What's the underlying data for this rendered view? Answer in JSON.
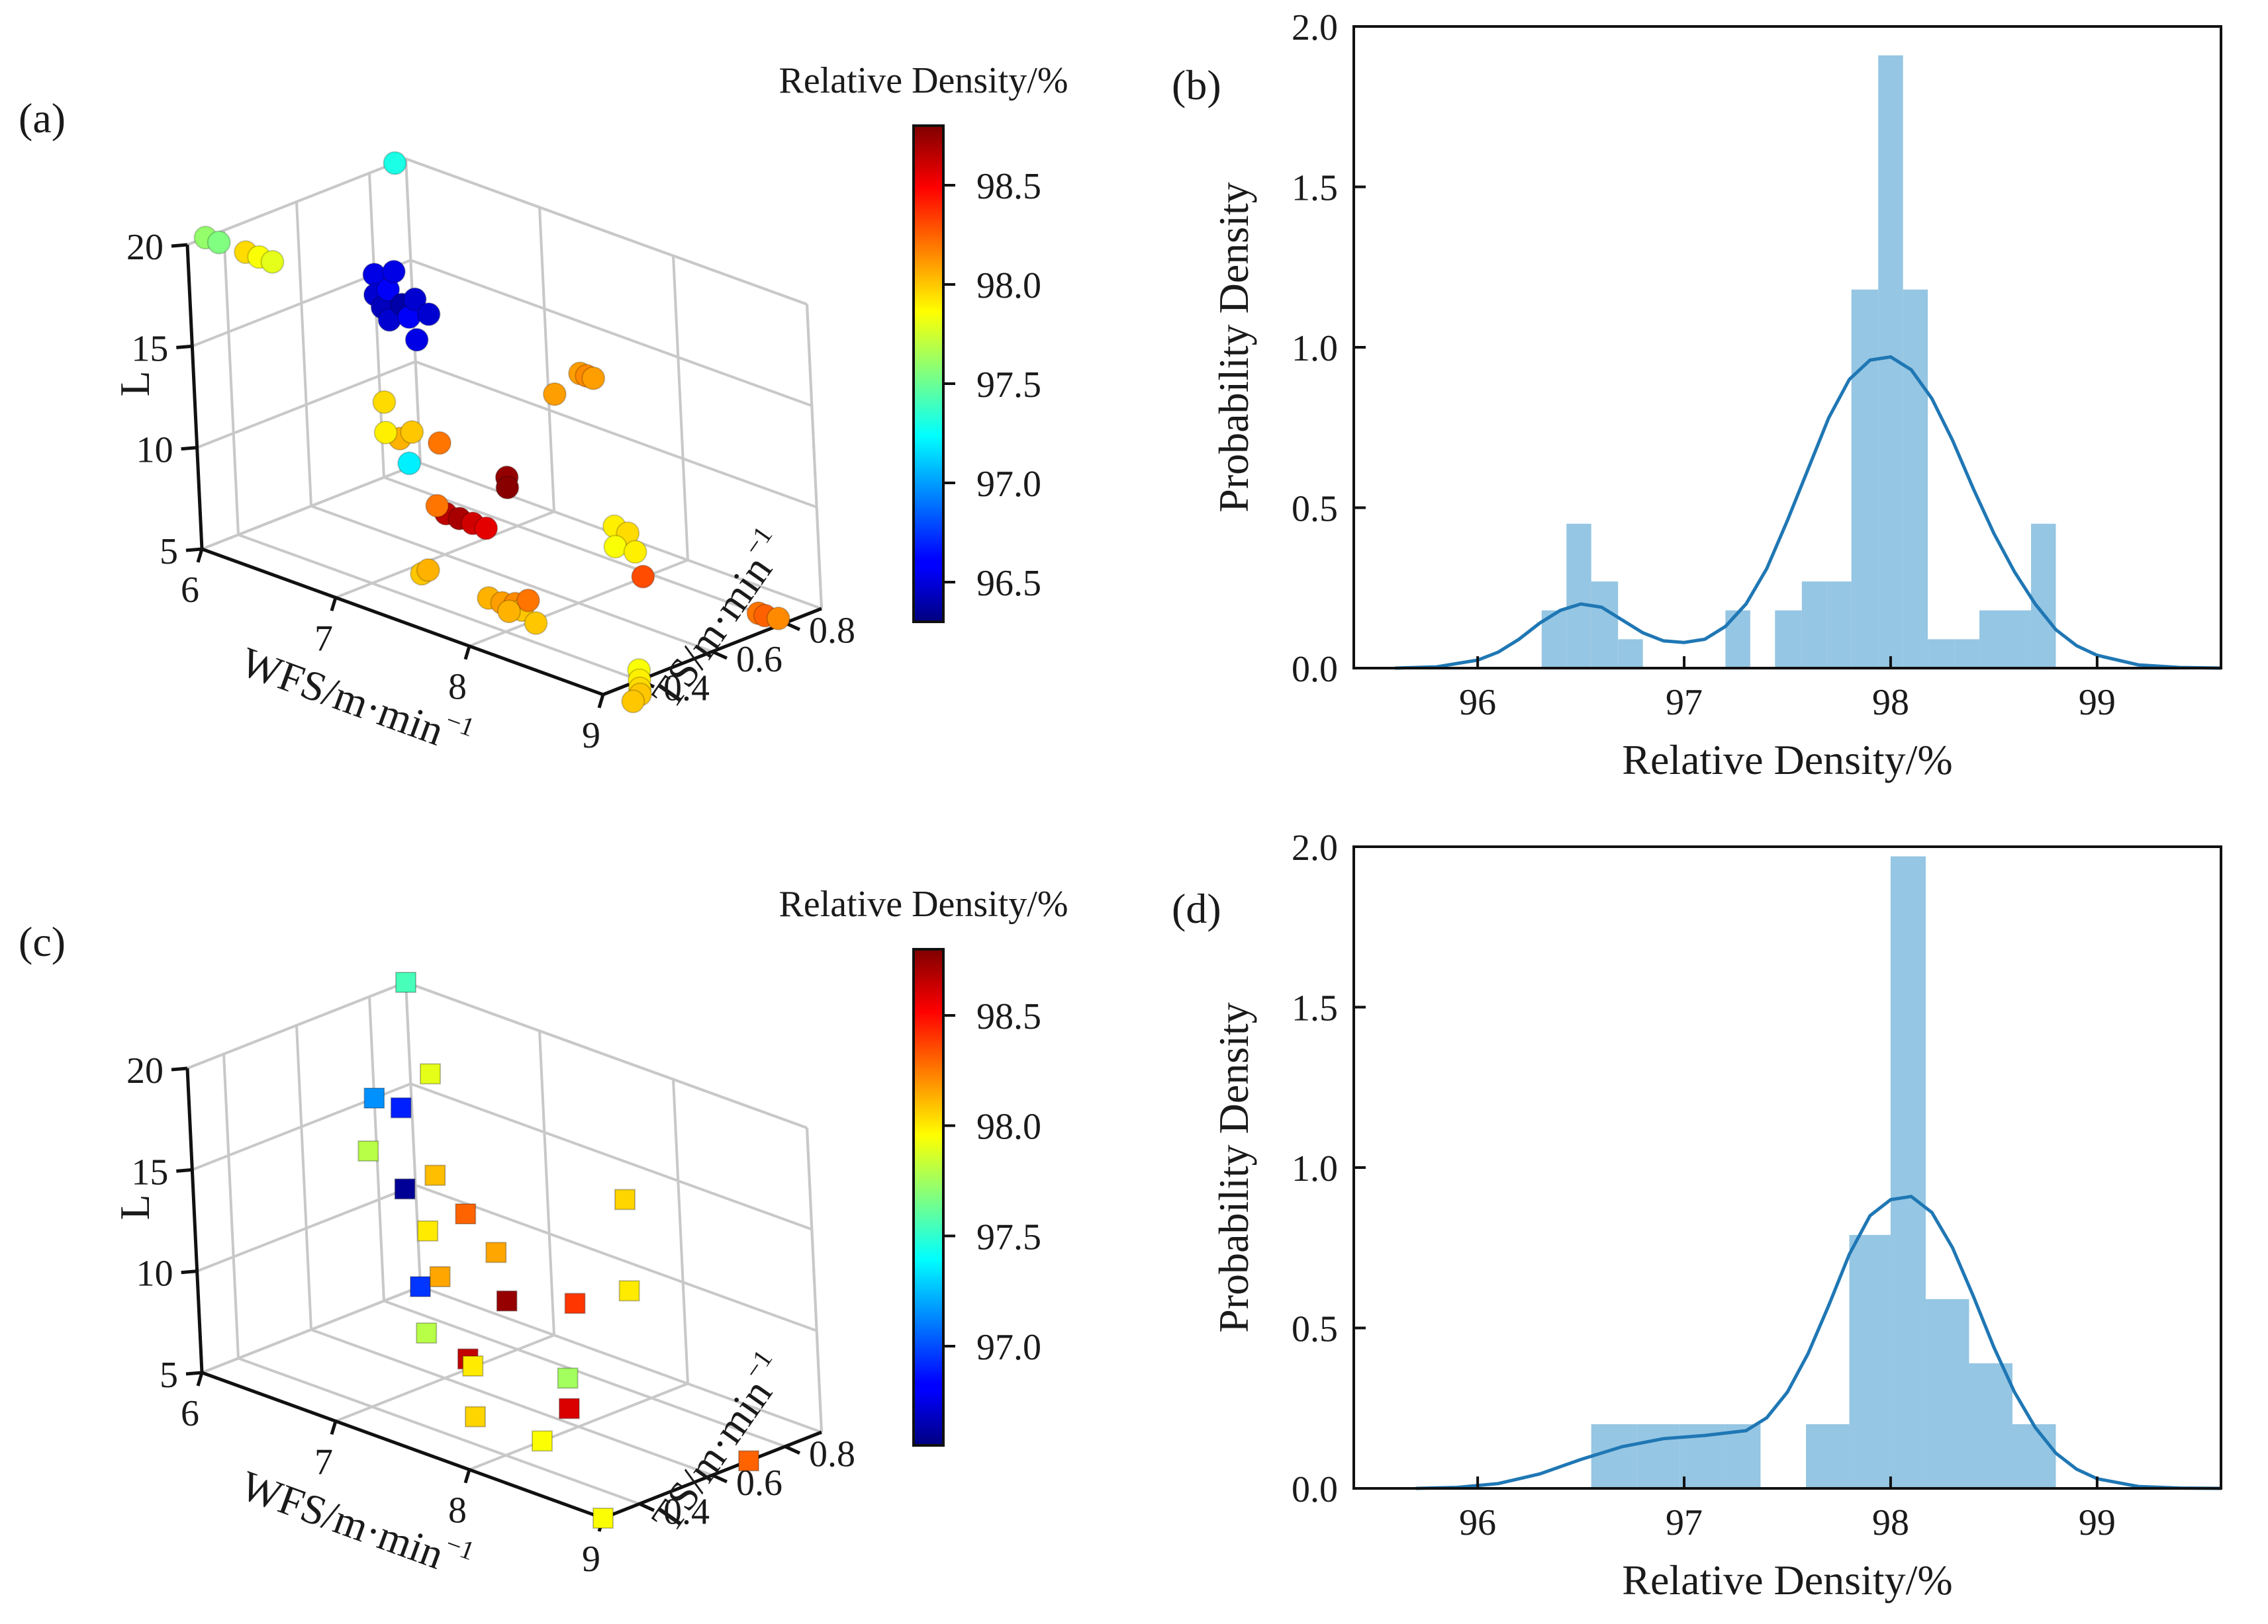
{
  "chart_data": [
    {
      "panel": "(a)",
      "type": "scatter",
      "dimensions": "3d",
      "marker": "circle",
      "xlabel": "WFS/m·min",
      "xlabel_sup": "−1",
      "ylabel": "TS/m·min",
      "ylabel_sup": "−1",
      "zlabel": "L",
      "x_ticks": [
        "6",
        "7",
        "8",
        "9"
      ],
      "y_ticks": [
        "0.4",
        "0.6",
        "0.8"
      ],
      "z_ticks": [
        "5",
        "10",
        "15",
        "20"
      ],
      "xlim": [
        6,
        9
      ],
      "ylim": [
        0.3,
        0.9
      ],
      "zlim": [
        5,
        20
      ],
      "colorbar": {
        "title": "Relative Density/%",
        "ticks": [
          "96.5",
          "97.0",
          "97.5",
          "98.0",
          "98.5"
        ],
        "range": [
          96.3,
          98.8
        ],
        "colormap": "jet"
      },
      "points": [
        {
          "wfs": 6.0,
          "ts": 0.35,
          "l": 20,
          "density": 97.6
        },
        {
          "wfs": 6.1,
          "ts": 0.35,
          "l": 20,
          "density": 97.55
        },
        {
          "wfs": 6.3,
          "ts": 0.35,
          "l": 20,
          "density": 97.95
        },
        {
          "wfs": 6.4,
          "ts": 0.35,
          "l": 20,
          "density": 97.85
        },
        {
          "wfs": 6.5,
          "ts": 0.35,
          "l": 20,
          "density": 97.8
        },
        {
          "wfs": 7.3,
          "ts": 0.35,
          "l": 15,
          "density": 97.95
        },
        {
          "wfs": 7.3,
          "ts": 0.35,
          "l": 13.5,
          "density": 97.9
        },
        {
          "wfs": 7.5,
          "ts": 0.35,
          "l": 14,
          "density": 98.0
        },
        {
          "wfs": 8.8,
          "ts": 0.35,
          "l": 20,
          "density": 98.1
        },
        {
          "wfs": 8.85,
          "ts": 0.35,
          "l": 20,
          "density": 98.15
        },
        {
          "wfs": 8.9,
          "ts": 0.35,
          "l": 20,
          "density": 98.1
        },
        {
          "wfs": 8.6,
          "ts": 0.35,
          "l": 18.5,
          "density": 98.1
        },
        {
          "wfs": 6.0,
          "ts": 0.87,
          "l": 20,
          "density": 97.3
        },
        {
          "wfs": 6.0,
          "ts": 0.8,
          "l": 15,
          "density": 96.55
        },
        {
          "wfs": 6.0,
          "ts": 0.8,
          "l": 14,
          "density": 96.5
        },
        {
          "wfs": 6.05,
          "ts": 0.8,
          "l": 13.5,
          "density": 96.45
        },
        {
          "wfs": 6.1,
          "ts": 0.8,
          "l": 14.5,
          "density": 96.6
        },
        {
          "wfs": 6.1,
          "ts": 0.8,
          "l": 13,
          "density": 96.5
        },
        {
          "wfs": 6.15,
          "ts": 0.8,
          "l": 15.5,
          "density": 96.55
        },
        {
          "wfs": 6.2,
          "ts": 0.8,
          "l": 14,
          "density": 96.4
        },
        {
          "wfs": 6.25,
          "ts": 0.8,
          "l": 13.5,
          "density": 96.6
        },
        {
          "wfs": 6.3,
          "ts": 0.8,
          "l": 14.5,
          "density": 96.5
        },
        {
          "wfs": 6.3,
          "ts": 0.8,
          "l": 12.5,
          "density": 96.55
        },
        {
          "wfs": 6.4,
          "ts": 0.8,
          "l": 14,
          "density": 96.5
        },
        {
          "wfs": 6.0,
          "ts": 0.87,
          "l": 5.2,
          "density": 97.2
        },
        {
          "wfs": 6.7,
          "ts": 0.6,
          "l": 10,
          "density": 98.05
        },
        {
          "wfs": 7.0,
          "ts": 0.6,
          "l": 10.5,
          "density": 98.2
        },
        {
          "wfs": 7.5,
          "ts": 0.6,
          "l": 10,
          "density": 98.75
        },
        {
          "wfs": 7.5,
          "ts": 0.6,
          "l": 9.5,
          "density": 98.78
        },
        {
          "wfs": 8.3,
          "ts": 0.6,
          "l": 9.5,
          "density": 97.9
        },
        {
          "wfs": 8.4,
          "ts": 0.6,
          "l": 9.4,
          "density": 97.95
        },
        {
          "wfs": 8.3,
          "ts": 0.6,
          "l": 8.5,
          "density": 97.85
        },
        {
          "wfs": 8.45,
          "ts": 0.6,
          "l": 8.6,
          "density": 97.9
        },
        {
          "wfs": 8.5,
          "ts": 0.6,
          "l": 7.5,
          "density": 98.3
        },
        {
          "wfs": 6.6,
          "ts": 0.75,
          "l": 5,
          "density": 98.65
        },
        {
          "wfs": 6.7,
          "ts": 0.75,
          "l": 5,
          "density": 98.7
        },
        {
          "wfs": 6.8,
          "ts": 0.75,
          "l": 5,
          "density": 98.6
        },
        {
          "wfs": 6.9,
          "ts": 0.75,
          "l": 5,
          "density": 98.55
        },
        {
          "wfs": 7.1,
          "ts": 0.55,
          "l": 8.0,
          "density": 98.2
        },
        {
          "wfs": 7.1,
          "ts": 0.5,
          "l": 5,
          "density": 98.0
        },
        {
          "wfs": 7.15,
          "ts": 0.5,
          "l": 5.3,
          "density": 98.05
        },
        {
          "wfs": 7.6,
          "ts": 0.5,
          "l": 5,
          "density": 98.05
        },
        {
          "wfs": 7.7,
          "ts": 0.5,
          "l": 5,
          "density": 98.1
        },
        {
          "wfs": 7.8,
          "ts": 0.5,
          "l": 5.2,
          "density": 98.15
        },
        {
          "wfs": 7.85,
          "ts": 0.5,
          "l": 5,
          "density": 98.0
        },
        {
          "wfs": 7.9,
          "ts": 0.5,
          "l": 5.6,
          "density": 98.2
        },
        {
          "wfs": 7.75,
          "ts": 0.5,
          "l": 4.7,
          "density": 98.05
        },
        {
          "wfs": 7.95,
          "ts": 0.5,
          "l": 4.6,
          "density": 98.0
        },
        {
          "wfs": 8.8,
          "ts": 0.8,
          "l": 5,
          "density": 98.2
        },
        {
          "wfs": 8.85,
          "ts": 0.8,
          "l": 5,
          "density": 98.25
        },
        {
          "wfs": 8.95,
          "ts": 0.8,
          "l": 5.1,
          "density": 98.15
        },
        {
          "wfs": 9.0,
          "ts": 0.4,
          "l": 5.5,
          "density": 97.85
        },
        {
          "wfs": 9.0,
          "ts": 0.4,
          "l": 5.0,
          "density": 97.9
        },
        {
          "wfs": 9.0,
          "ts": 0.4,
          "l": 4.6,
          "density": 97.95
        },
        {
          "wfs": 9.0,
          "ts": 0.4,
          "l": 4.3,
          "density": 98.0
        },
        {
          "wfs": 9.0,
          "ts": 0.38,
          "l": 4.1,
          "density": 98.0
        }
      ]
    },
    {
      "panel": "(b)",
      "type": "bar",
      "subtype": "histogram-with-kde",
      "xlabel": "Relative Density/%",
      "ylabel": "Probability Density",
      "x_ticks": [
        "96",
        "97",
        "98",
        "99"
      ],
      "y_ticks": [
        "0.0",
        "0.5",
        "1.0",
        "1.5",
        "2.0"
      ],
      "xlim": [
        95.4,
        99.6
      ],
      "ylim": [
        0,
        2.0
      ],
      "color": "#95c6e3",
      "kde_color": "#1f77b4",
      "bins": [
        {
          "x0": 96.31,
          "x1": 96.43,
          "density": 0.18
        },
        {
          "x0": 96.43,
          "x1": 96.55,
          "density": 0.45
        },
        {
          "x0": 96.55,
          "x1": 96.68,
          "density": 0.27
        },
        {
          "x0": 96.68,
          "x1": 96.8,
          "density": 0.09
        },
        {
          "x0": 96.8,
          "x1": 97.2,
          "density": 0
        },
        {
          "x0": 97.2,
          "x1": 97.32,
          "density": 0.18
        },
        {
          "x0": 97.32,
          "x1": 97.44,
          "density": 0
        },
        {
          "x0": 97.44,
          "x1": 97.57,
          "density": 0.18
        },
        {
          "x0": 97.57,
          "x1": 97.69,
          "density": 0.27
        },
        {
          "x0": 97.69,
          "x1": 97.81,
          "density": 0.27
        },
        {
          "x0": 97.81,
          "x1": 97.94,
          "density": 1.18
        },
        {
          "x0": 97.94,
          "x1": 98.06,
          "density": 1.91
        },
        {
          "x0": 98.06,
          "x1": 98.18,
          "density": 1.18
        },
        {
          "x0": 98.18,
          "x1": 98.31,
          "density": 0.09
        },
        {
          "x0": 98.31,
          "x1": 98.43,
          "density": 0.09
        },
        {
          "x0": 98.43,
          "x1": 98.55,
          "density": 0.18
        },
        {
          "x0": 98.55,
          "x1": 98.68,
          "density": 0.18
        },
        {
          "x0": 98.68,
          "x1": 98.8,
          "density": 0.45
        }
      ],
      "kde": {
        "x": [
          95.6,
          95.8,
          96.0,
          96.1,
          96.2,
          96.3,
          96.4,
          96.5,
          96.6,
          96.7,
          96.8,
          96.9,
          97.0,
          97.1,
          97.2,
          97.3,
          97.4,
          97.5,
          97.6,
          97.7,
          97.8,
          97.9,
          98.0,
          98.1,
          98.2,
          98.3,
          98.4,
          98.5,
          98.6,
          98.7,
          98.8,
          98.9,
          99.0,
          99.2,
          99.4,
          99.6
        ],
        "y": [
          0.0,
          0.004,
          0.025,
          0.05,
          0.09,
          0.14,
          0.18,
          0.2,
          0.19,
          0.15,
          0.11,
          0.085,
          0.08,
          0.09,
          0.13,
          0.2,
          0.31,
          0.46,
          0.62,
          0.78,
          0.9,
          0.96,
          0.97,
          0.93,
          0.84,
          0.71,
          0.56,
          0.42,
          0.3,
          0.2,
          0.12,
          0.07,
          0.04,
          0.01,
          0.002,
          0.0
        ]
      }
    },
    {
      "panel": "(c)",
      "type": "scatter",
      "dimensions": "3d",
      "marker": "square",
      "xlabel": "WFS/m·min",
      "xlabel_sup": "−1",
      "ylabel": "TS/m·min",
      "ylabel_sup": "−1",
      "zlabel": "L",
      "x_ticks": [
        "6",
        "7",
        "8",
        "9"
      ],
      "y_ticks": [
        "0.4",
        "0.6",
        "0.8"
      ],
      "z_ticks": [
        "5",
        "10",
        "15",
        "20"
      ],
      "xlim": [
        6,
        9
      ],
      "ylim": [
        0.3,
        0.9
      ],
      "zlim": [
        5,
        20
      ],
      "colorbar": {
        "title": "Relative Density/%",
        "ticks": [
          "97.0",
          "97.5",
          "98.0",
          "98.5"
        ],
        "range": [
          96.55,
          98.8
        ],
        "colormap": "jet"
      },
      "points": [
        {
          "wfs": 6.0,
          "ts": 0.9,
          "l": 20,
          "density": 97.55
        },
        {
          "wfs": 7.0,
          "ts": 0.6,
          "l": 20,
          "density": 97.9
        },
        {
          "wfs": 9.0,
          "ts": 0.4,
          "l": 20,
          "density": 98.05
        },
        {
          "wfs": 9.0,
          "ts": 0.4,
          "l": 15.5,
          "density": 98.0
        },
        {
          "wfs": 6.0,
          "ts": 0.8,
          "l": 15,
          "density": 97.15
        },
        {
          "wfs": 6.2,
          "ts": 0.8,
          "l": 15,
          "density": 96.9
        },
        {
          "wfs": 6.2,
          "ts": 0.8,
          "l": 11,
          "density": 96.6
        },
        {
          "wfs": 7.0,
          "ts": 0.6,
          "l": 15,
          "density": 98.1
        },
        {
          "wfs": 7.5,
          "ts": 0.5,
          "l": 15,
          "density": 98.3
        },
        {
          "wfs": 8.0,
          "ts": 0.4,
          "l": 15,
          "density": 98.15
        },
        {
          "wfs": 6.5,
          "ts": 0.6,
          "l": 15,
          "density": 97.8
        },
        {
          "wfs": 8.3,
          "ts": 0.5,
          "l": 12.5,
          "density": 98.4
        },
        {
          "wfs": 6.5,
          "ts": 0.75,
          "l": 10,
          "density": 98.0
        },
        {
          "wfs": 7.0,
          "ts": 0.6,
          "l": 10,
          "density": 98.15
        },
        {
          "wfs": 7.5,
          "ts": 0.6,
          "l": 10,
          "density": 98.75
        },
        {
          "wfs": 7.3,
          "ts": 0.45,
          "l": 9,
          "density": 97.8
        },
        {
          "wfs": 8.5,
          "ts": 0.4,
          "l": 10,
          "density": 97.75
        },
        {
          "wfs": 8.5,
          "ts": 0.4,
          "l": 8.5,
          "density": 98.6
        },
        {
          "wfs": 6.0,
          "ts": 0.9,
          "l": 5,
          "density": 96.95
        },
        {
          "wfs": 6.9,
          "ts": 0.7,
          "l": 5,
          "density": 98.65
        },
        {
          "wfs": 7.5,
          "ts": 0.5,
          "l": 7.5,
          "density": 98.0
        },
        {
          "wfs": 7.5,
          "ts": 0.5,
          "l": 5,
          "density": 98.05
        },
        {
          "wfs": 8.0,
          "ts": 0.5,
          "l": 5,
          "density": 97.95
        },
        {
          "wfs": 9.0,
          "ts": 0.7,
          "l": 5,
          "density": 98.3
        },
        {
          "wfs": 9.0,
          "ts": 0.3,
          "l": 5,
          "density": 97.95
        }
      ]
    },
    {
      "panel": "(d)",
      "type": "bar",
      "subtype": "histogram-with-kde",
      "xlabel": "Relative Density/%",
      "ylabel": "Probability Density",
      "x_ticks": [
        "96",
        "97",
        "98",
        "99"
      ],
      "y_ticks": [
        "0.0",
        "0.5",
        "1.0",
        "1.5",
        "2.0"
      ],
      "xlim": [
        95.4,
        99.6
      ],
      "ylim": [
        0,
        2.0
      ],
      "color": "#95c6e3",
      "kde_color": "#1f77b4",
      "bins": [
        {
          "x0": 96.55,
          "x1": 96.77,
          "density": 0.2
        },
        {
          "x0": 96.77,
          "x1": 96.98,
          "density": 0.2
        },
        {
          "x0": 96.98,
          "x1": 97.2,
          "density": 0.2
        },
        {
          "x0": 97.2,
          "x1": 97.37,
          "density": 0.2
        },
        {
          "x0": 97.37,
          "x1": 97.59,
          "density": 0
        },
        {
          "x0": 97.59,
          "x1": 97.8,
          "density": 0.2
        },
        {
          "x0": 97.8,
          "x1": 98.0,
          "density": 0.79
        },
        {
          "x0": 98.0,
          "x1": 98.17,
          "density": 1.97
        },
        {
          "x0": 98.17,
          "x1": 98.38,
          "density": 0.59
        },
        {
          "x0": 98.38,
          "x1": 98.59,
          "density": 0.39
        },
        {
          "x0": 98.59,
          "x1": 98.8,
          "density": 0.2
        }
      ],
      "kde": {
        "x": [
          95.7,
          95.9,
          96.1,
          96.3,
          96.5,
          96.7,
          96.9,
          97.1,
          97.3,
          97.4,
          97.5,
          97.6,
          97.7,
          97.8,
          97.9,
          98.0,
          98.1,
          98.2,
          98.3,
          98.4,
          98.5,
          98.6,
          98.7,
          98.8,
          98.9,
          99.0,
          99.2,
          99.4,
          99.6
        ],
        "y": [
          0.0,
          0.003,
          0.015,
          0.045,
          0.09,
          0.13,
          0.155,
          0.165,
          0.18,
          0.22,
          0.3,
          0.42,
          0.57,
          0.73,
          0.85,
          0.9,
          0.91,
          0.86,
          0.75,
          0.6,
          0.44,
          0.3,
          0.19,
          0.11,
          0.06,
          0.03,
          0.006,
          0.001,
          0.0
        ]
      }
    }
  ]
}
